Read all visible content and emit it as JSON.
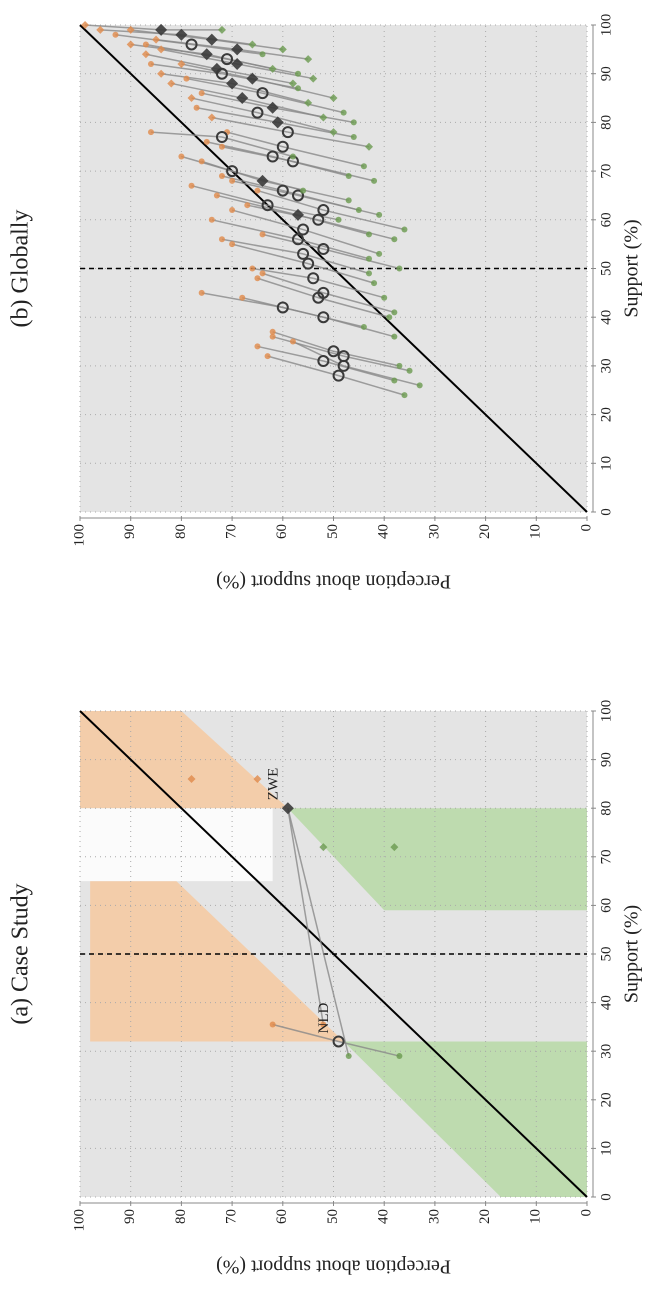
{
  "chart_data": [
    {
      "type": "scatter",
      "title": "(a) Case Study",
      "x_label": "Support (%)",
      "y_label": "Perception about support (%)",
      "xlim": [
        0,
        100
      ],
      "ylim": [
        0,
        100
      ],
      "xticks": [
        0,
        10,
        20,
        30,
        40,
        50,
        60,
        70,
        80,
        90,
        100
      ],
      "yticks": [
        0,
        10,
        20,
        30,
        40,
        50,
        60,
        70,
        80,
        90,
        100
      ],
      "grid": true,
      "vline": 50,
      "background": "#e4e4e4",
      "regions": [
        {
          "color": "#f6c9a0",
          "x": [
            32,
            65,
            65,
            32
          ],
          "y": [
            98,
            98,
            81,
            48
          ]
        },
        {
          "color": "#b7d9a6",
          "x": [
            0,
            32,
            32,
            0
          ],
          "y": [
            0,
            0,
            48,
            17
          ]
        },
        {
          "color": "#f6c9a0",
          "x": [
            80,
            100,
            100,
            80
          ],
          "y": [
            100,
            100,
            80,
            59
          ]
        },
        {
          "color": "#b7d9a6",
          "x": [
            59,
            80,
            80,
            59
          ],
          "y": [
            0,
            0,
            59,
            40
          ]
        },
        {
          "color": "#ffffff",
          "x": [
            65,
            80,
            80,
            65
          ],
          "y": [
            100,
            100,
            62,
            62
          ]
        }
      ],
      "series": [
        {
          "color": "#e0894a",
          "x": [
            35.5,
            35.5,
            86,
            86
          ],
          "values": [
            62,
            52,
            78,
            65
          ],
          "markers": [
            "o",
            "o",
            "D",
            "D"
          ]
        },
        {
          "color": "#3a3a3a",
          "x": [
            32,
            80
          ],
          "values": [
            49,
            59
          ],
          "markers": [
            "o",
            "D"
          ],
          "labels": [
            "NLD",
            "ZWE"
          ]
        },
        {
          "color": "#6a9a4f",
          "x": [
            29,
            29,
            72,
            72
          ],
          "values": [
            37,
            47,
            38,
            52
          ],
          "markers": [
            "o",
            "o",
            "D",
            "D"
          ]
        }
      ],
      "links": [
        [
          0,
          0,
          0
        ],
        [
          1,
          2,
          2
        ]
      ]
    },
    {
      "type": "scatter",
      "title": "(b) Globally",
      "x_label": "Support (%)",
      "y_label": "Perception about support (%)",
      "xlim": [
        0,
        100
      ],
      "ylim": [
        0,
        100
      ],
      "xticks": [
        0,
        10,
        20,
        30,
        40,
        50,
        60,
        70,
        80,
        90,
        100
      ],
      "yticks": [
        0,
        10,
        20,
        30,
        40,
        50,
        60,
        70,
        80,
        90,
        100
      ],
      "grid": true,
      "vline": 50,
      "background": "#e4e4e4",
      "regions": [],
      "series": [
        {
          "color": "#e0894a",
          "x": [
            32,
            35,
            34,
            36,
            37,
            44,
            45,
            48,
            49,
            50,
            55,
            56,
            57,
            60,
            62,
            63,
            65,
            66,
            67,
            68,
            69,
            72,
            73,
            75,
            76,
            78,
            78,
            81,
            83,
            85,
            86,
            88,
            89,
            90,
            92,
            92,
            94,
            95,
            96,
            96,
            97,
            98,
            99,
            99,
            100
          ],
          "values": [
            63,
            58,
            65,
            62,
            62,
            68,
            76,
            65,
            64,
            66,
            70,
            72,
            64,
            74,
            70,
            67,
            73,
            65,
            78,
            70,
            72,
            76,
            80,
            72,
            75,
            71,
            86,
            74,
            77,
            78,
            76,
            82,
            79,
            84,
            80,
            86,
            87,
            84,
            87,
            90,
            85,
            93,
            90,
            96,
            99
          ],
          "markers": [
            "o",
            "o",
            "o",
            "o",
            "o",
            "o",
            "o",
            "o",
            "o",
            "o",
            "o",
            "o",
            "o",
            "o",
            "o",
            "o",
            "o",
            "o",
            "o",
            "o",
            "o",
            "o",
            "o",
            "o",
            "o",
            "o",
            "o",
            "D",
            "o",
            "D",
            "o",
            "D",
            "o",
            "D",
            "D",
            "o",
            "D",
            "D",
            "o",
            "D",
            "D",
            "o",
            "D",
            "D",
            "D"
          ]
        },
        {
          "color": "#3a3a3a",
          "x": [
            28,
            30,
            31,
            32,
            33,
            40,
            42,
            44,
            45,
            48,
            51,
            53,
            54,
            56,
            58,
            60,
            61,
            62,
            63,
            65,
            66,
            68,
            70,
            72,
            73,
            75,
            77,
            78,
            80,
            82,
            83,
            85,
            86,
            88,
            89,
            90,
            91,
            92,
            93,
            94,
            95,
            96,
            97,
            98,
            99
          ],
          "values": [
            49,
            48,
            52,
            48,
            50,
            52,
            60,
            53,
            52,
            54,
            55,
            56,
            52,
            57,
            56,
            53,
            57,
            52,
            63,
            57,
            60,
            64,
            70,
            58,
            62,
            60,
            72,
            59,
            61,
            65,
            62,
            68,
            64,
            70,
            66,
            72,
            73,
            69,
            71,
            75,
            69,
            78,
            74,
            80,
            84
          ],
          "markers": [
            "o",
            "o",
            "o",
            "o",
            "o",
            "o",
            "o",
            "o",
            "o",
            "o",
            "o",
            "o",
            "o",
            "o",
            "o",
            "o",
            "D",
            "o",
            "o",
            "o",
            "o",
            "D",
            "o",
            "o",
            "o",
            "o",
            "o",
            "o",
            "D",
            "o",
            "D",
            "D",
            "o",
            "D",
            "D",
            "o",
            "D",
            "D",
            "o",
            "D",
            "D",
            "o",
            "D",
            "D",
            "D"
          ]
        },
        {
          "color": "#6a9a4f",
          "x": [
            24,
            26,
            27,
            29,
            30,
            36,
            38,
            40,
            41,
            44,
            47,
            49,
            50,
            52,
            53,
            56,
            57,
            58,
            60,
            61,
            62,
            64,
            66,
            68,
            69,
            71,
            73,
            75,
            77,
            78,
            80,
            81,
            82,
            84,
            85,
            87,
            88,
            89,
            90,
            91,
            93,
            94,
            95,
            96,
            99
          ],
          "values": [
            36,
            33,
            38,
            35,
            37,
            38,
            44,
            39,
            38,
            40,
            42,
            43,
            37,
            43,
            41,
            38,
            43,
            36,
            49,
            41,
            45,
            47,
            56,
            42,
            47,
            44,
            58,
            43,
            46,
            50,
            46,
            52,
            48,
            55,
            50,
            57,
            58,
            54,
            57,
            62,
            55,
            64,
            60,
            66,
            72
          ],
          "markers": [
            "o",
            "o",
            "o",
            "o",
            "o",
            "o",
            "o",
            "o",
            "o",
            "o",
            "o",
            "o",
            "o",
            "o",
            "o",
            "o",
            "o",
            "o",
            "o",
            "o",
            "o",
            "o",
            "o",
            "o",
            "o",
            "o",
            "o",
            "D",
            "o",
            "D",
            "o",
            "D",
            "o",
            "D",
            "D",
            "o",
            "D",
            "D",
            "o",
            "D",
            "D",
            "o",
            "D",
            "D",
            "D"
          ]
        }
      ]
    }
  ]
}
